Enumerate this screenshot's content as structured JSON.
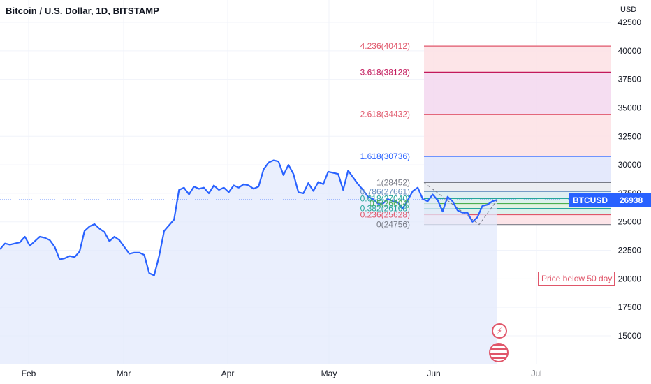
{
  "header": {
    "title": "Bitcoin / U.S. Dollar, 1D, BITSTAMP",
    "currency": "USD"
  },
  "symbol_tag": "BTCUSD",
  "price_tag": "26938",
  "alert_text": "Price below 50 day",
  "colors": {
    "line": "#2962ff",
    "area": "#e3eafc",
    "fib_red": "#e0566a",
    "fib_blue": "#2962ff",
    "fib_gray": "#787b86",
    "fib_teal": "#26a69a"
  },
  "chart_data": {
    "type": "line",
    "title": "Bitcoin / U.S. Dollar, 1D, BITSTAMP",
    "ylim": [
      13000,
      43000
    ],
    "y_ticks": [
      "42500",
      "40000",
      "37500",
      "35000",
      "32500",
      "30000",
      "27500",
      "25000",
      "22500",
      "20000",
      "17500",
      "15000"
    ],
    "x_tick_labels": [
      "Feb",
      "Mar",
      "Apr",
      "May",
      "Jun",
      "Jul"
    ],
    "series": [
      {
        "values": [
          22600,
          23100,
          23000,
          23100,
          23200,
          23700,
          22900,
          23300,
          23700,
          23600,
          23400,
          22800,
          21700,
          21800,
          22000,
          21900,
          22400,
          24200,
          24600,
          24800,
          24400,
          24100,
          23300,
          23700,
          23400,
          22800,
          22200,
          22300,
          22300,
          22100,
          20500,
          20300,
          22000,
          24200,
          24700,
          25200,
          27800,
          28000,
          27400,
          28100,
          27900,
          28000,
          27500,
          28200,
          27800,
          28000,
          27600,
          28200,
          28000,
          28300,
          28200,
          27900,
          28100,
          29600,
          30200,
          30400,
          30300,
          29100,
          30000,
          29200,
          27600,
          27500,
          28400,
          27700,
          28500,
          28300,
          29400,
          29300,
          29200,
          27800,
          29500,
          28900,
          28300,
          27800,
          27200,
          27000,
          26600,
          26600,
          27000,
          26800,
          26700,
          26200,
          26900,
          27700,
          28000,
          27000,
          26800,
          27400,
          26900,
          25900,
          27200,
          26800,
          26000,
          25800,
          25800,
          25000,
          25400,
          26400,
          26500,
          26800,
          26938
        ]
      }
    ],
    "fibonacci": [
      {
        "label": "4.236(40412)",
        "value": 40412
      },
      {
        "label": "3.618(38128)",
        "value": 38128
      },
      {
        "label": "2.618(34432)",
        "value": 34432
      },
      {
        "label": "1.618(30736)",
        "value": 30736
      },
      {
        "label": "1(28452)",
        "value": 28452
      },
      {
        "label": "0.786(27661)",
        "value": 27661
      },
      {
        "label": "0.618(27040)",
        "value": 27040
      },
      {
        "label": "0.5(26604)",
        "value": 26604
      },
      {
        "label": "0.382(26168)",
        "value": 26168
      },
      {
        "label": "0.236(25628)",
        "value": 25628
      },
      {
        "label": "0(24756)",
        "value": 24756
      }
    ],
    "last_price": 26938
  }
}
